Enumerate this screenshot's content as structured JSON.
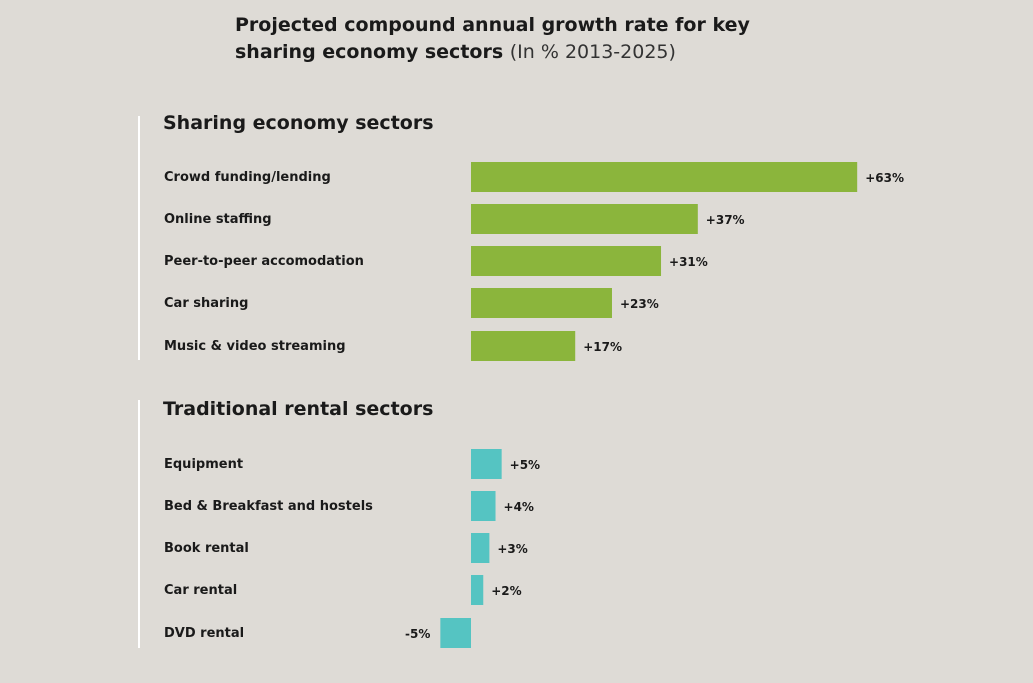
{
  "title": {
    "main": "Projected compound annual growth rate for key sharing economy sectors",
    "sub": "(In % 2013-2025)"
  },
  "colors": {
    "background": "#dedbd6",
    "sharing": "#8bb53c",
    "traditional": "#55c4c2"
  },
  "chart_data": [
    {
      "type": "bar",
      "orientation": "horizontal",
      "title": "Sharing economy sectors",
      "categories": [
        "Crowd funding/lending",
        "Online staffing",
        "Peer-to-peer accomodation",
        "Car sharing",
        "Music & video streaming"
      ],
      "values": [
        63,
        37,
        31,
        23,
        17
      ],
      "labels": [
        "+63%",
        "+37%",
        "+31%",
        "+23%",
        "+17%"
      ],
      "color": "#8bb53c"
    },
    {
      "type": "bar",
      "orientation": "horizontal",
      "title": "Traditional rental sectors",
      "categories": [
        "Equipment",
        "Bed & Breakfast and hostels",
        "Book rental",
        "Car rental",
        "DVD rental"
      ],
      "values": [
        5,
        4,
        3,
        2,
        -5
      ],
      "labels": [
        "+5%",
        "+4%",
        "+3%",
        "+2%",
        "-5%"
      ],
      "color": "#55c4c2"
    }
  ]
}
